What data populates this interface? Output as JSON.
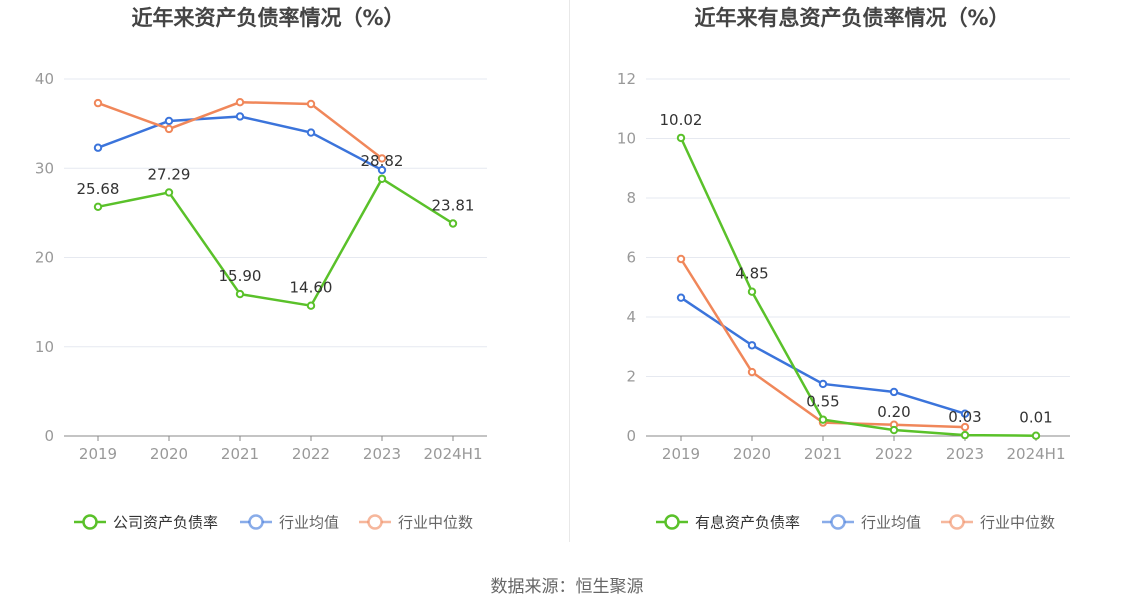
{
  "colors": {
    "company": "#5ac12a",
    "industry_avg": "#3b74db",
    "industry_median": "#f0875a",
    "axis_text": "#999999",
    "title_text": "#444444",
    "grid": "#e6e9f0",
    "axis_line": "#888888"
  },
  "source": "数据来源：恒生聚源",
  "chart_data": [
    {
      "type": "line",
      "title": "近年来资产负债率情况（%）",
      "categories": [
        "2019",
        "2020",
        "2021",
        "2022",
        "2023",
        "2024H1"
      ],
      "ylim": [
        0,
        40
      ],
      "yticks": [
        0,
        10,
        20,
        30,
        40
      ],
      "grid": true,
      "legend_position": "bottom",
      "series": [
        {
          "name": "公司资产负债率",
          "color": "#5ac12a",
          "labeled": true,
          "values": [
            25.68,
            27.29,
            15.9,
            14.6,
            28.82,
            23.81
          ],
          "labels": [
            "25.68",
            "27.29",
            "15.90",
            "14.60",
            "28.82",
            "23.81"
          ]
        },
        {
          "name": "行业均值",
          "color": "#3b74db",
          "labeled": false,
          "values": [
            32.3,
            35.3,
            35.8,
            34.0,
            29.8,
            null
          ]
        },
        {
          "name": "行业中位数",
          "color": "#f0875a",
          "labeled": false,
          "values": [
            37.3,
            34.4,
            37.4,
            37.2,
            31.1,
            null
          ]
        }
      ]
    },
    {
      "type": "line",
      "title": "近年来有息资产负债率情况（%）",
      "categories": [
        "2019",
        "2020",
        "2021",
        "2022",
        "2023",
        "2024H1"
      ],
      "ylim": [
        0,
        12
      ],
      "yticks": [
        0,
        2,
        4,
        6,
        8,
        10,
        12
      ],
      "grid": true,
      "legend_position": "bottom",
      "series": [
        {
          "name": "有息资产负债率",
          "color": "#5ac12a",
          "labeled": true,
          "values": [
            10.02,
            4.85,
            0.55,
            0.2,
            0.03,
            0.01
          ],
          "labels": [
            "10.02",
            "4.85",
            "0.55",
            "0.20",
            "0.03",
            "0.01"
          ]
        },
        {
          "name": "行业均值",
          "color": "#3b74db",
          "labeled": false,
          "values": [
            4.65,
            3.05,
            1.75,
            1.48,
            0.75,
            null
          ]
        },
        {
          "name": "行业中位数",
          "color": "#f0875a",
          "labeled": false,
          "values": [
            5.95,
            2.15,
            0.45,
            0.38,
            0.3,
            null
          ]
        }
      ]
    }
  ]
}
